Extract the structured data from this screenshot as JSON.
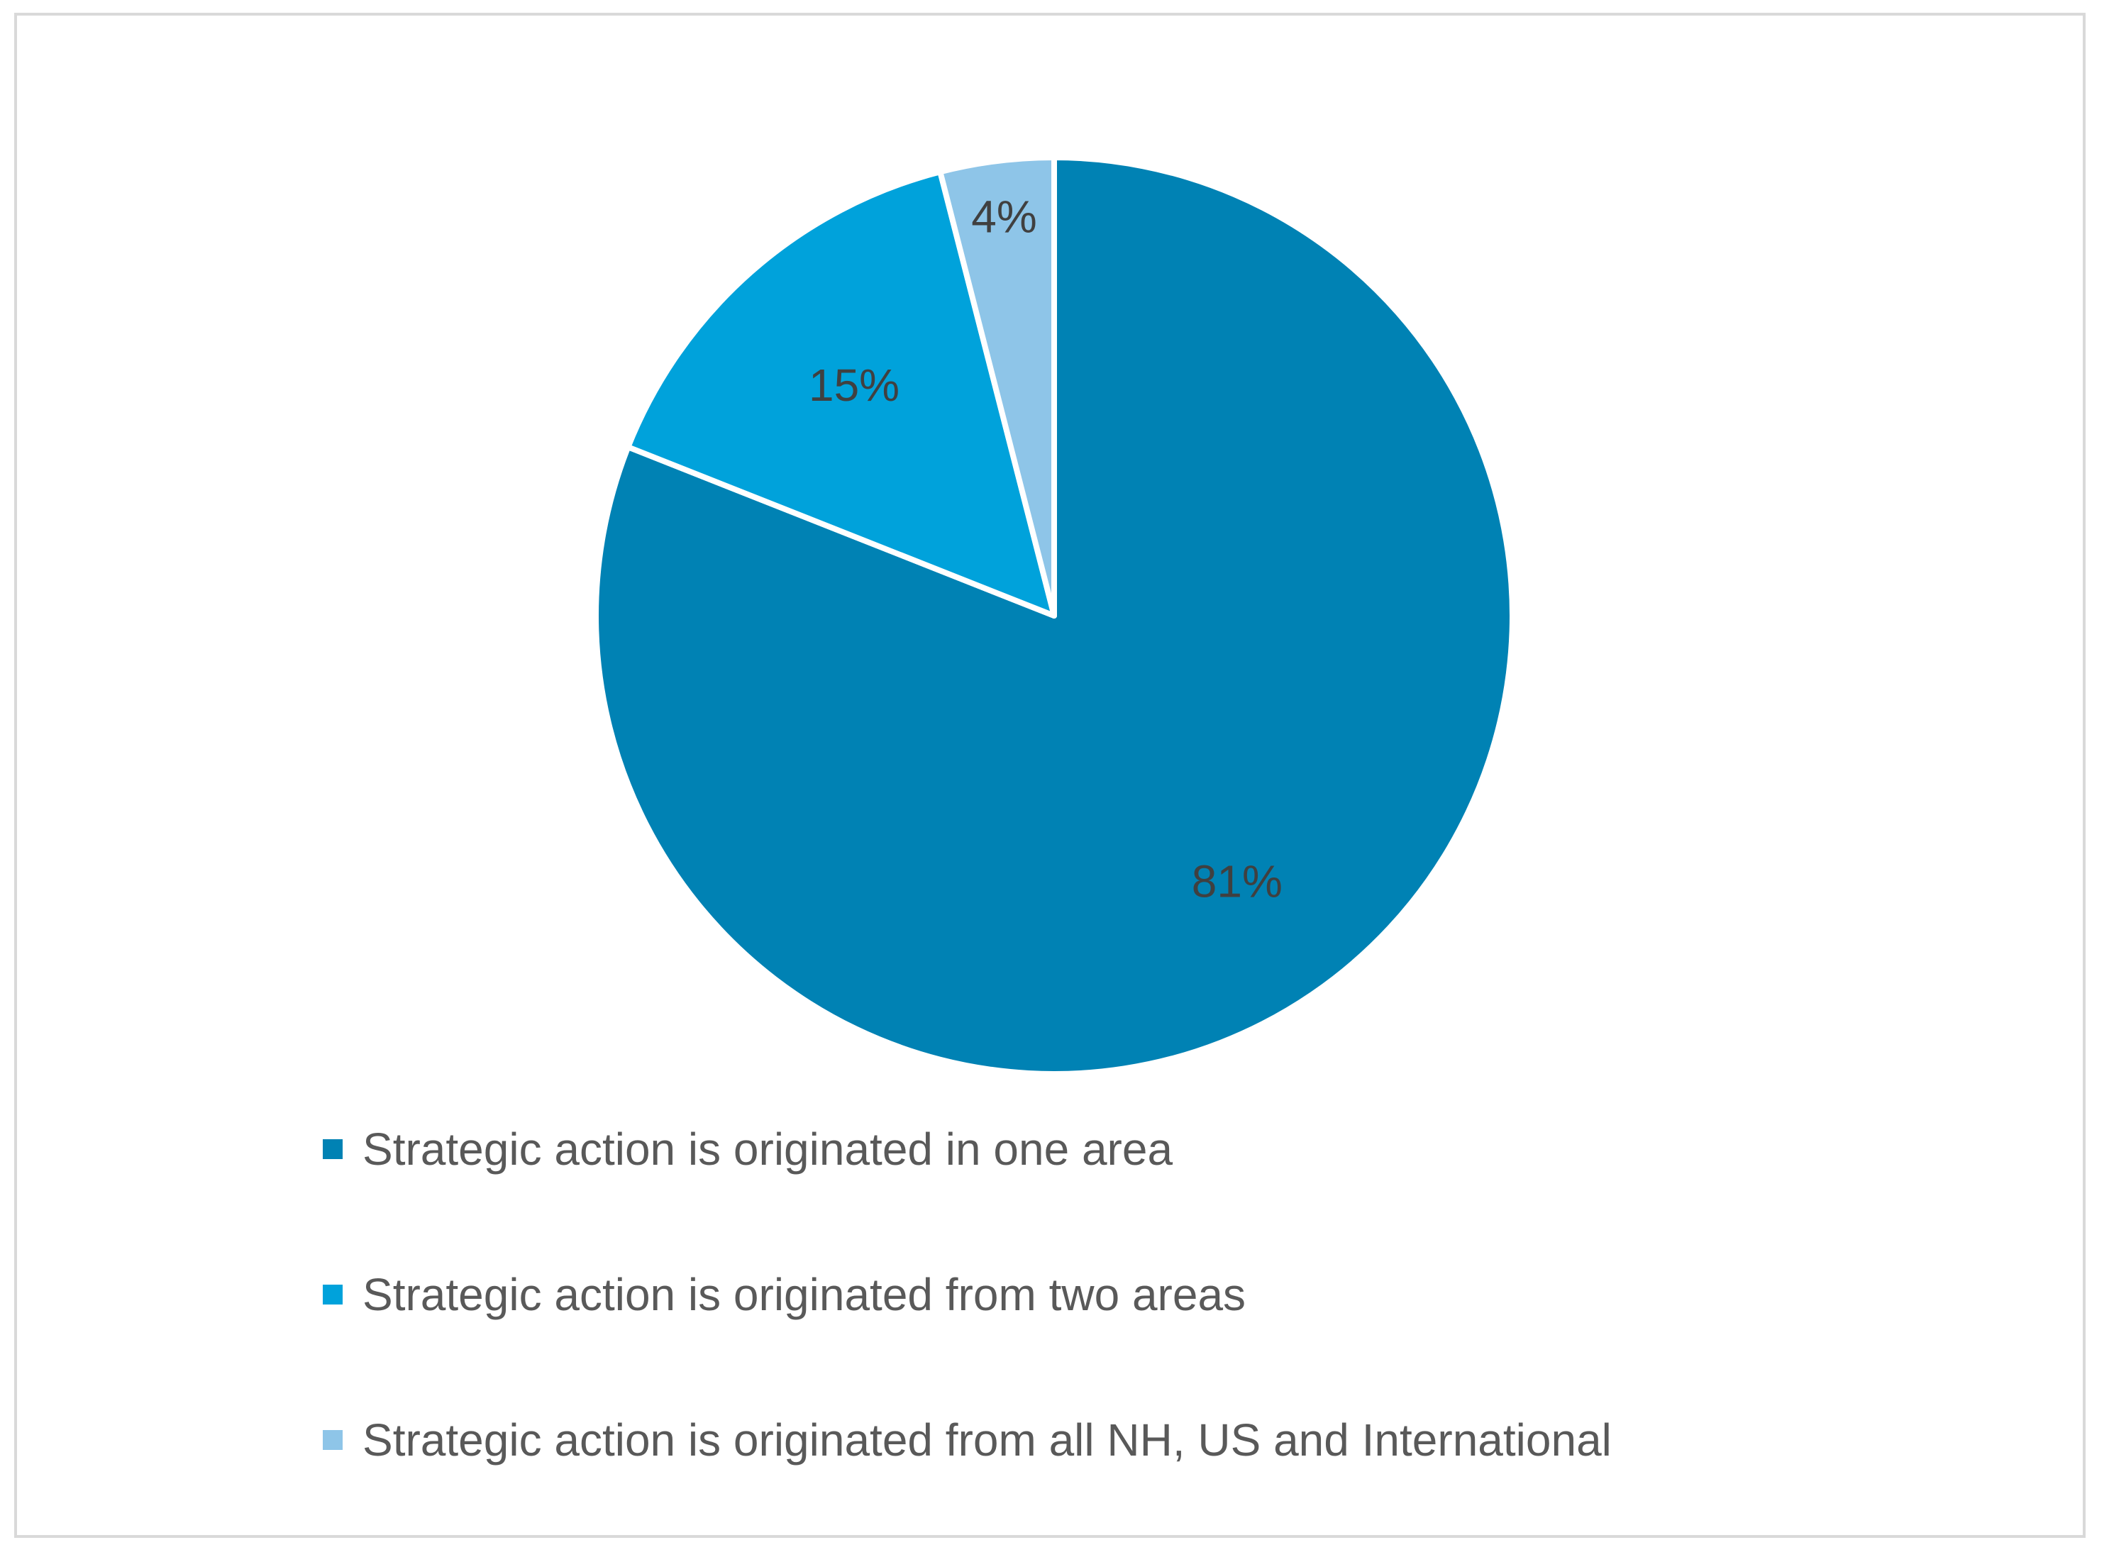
{
  "chart_data": {
    "type": "pie",
    "title": "",
    "categories": [
      "Strategic action is originated in one area",
      "Strategic action is originated from two areas",
      "Strategic action is originated from all NH, US and International"
    ],
    "values": [
      81,
      15,
      4
    ],
    "value_labels": [
      "81%",
      "15%",
      "4%"
    ],
    "colors": [
      "#0082B4",
      "#00A2DB",
      "#8EC5E8"
    ],
    "legend_position": "bottom"
  }
}
